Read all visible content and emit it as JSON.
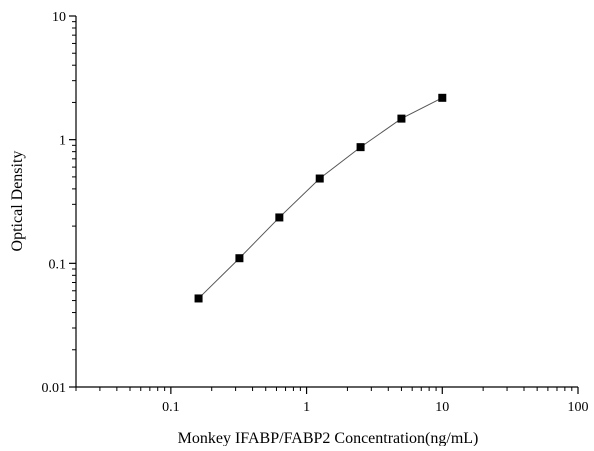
{
  "chart_data": {
    "type": "scatter",
    "title": "",
    "xlabel": "Monkey IFABP/FABP2 Concentration(ng/mL)",
    "ylabel": "Optical Density",
    "x_scale": "log",
    "y_scale": "log",
    "xlim": [
      0.02,
      100
    ],
    "ylim": [
      0.01,
      10
    ],
    "x_ticks": [
      0.1,
      1,
      10,
      100
    ],
    "x_tick_labels": [
      "0.1",
      "1",
      "10",
      "100"
    ],
    "y_ticks": [
      0.01,
      0.1,
      1,
      10
    ],
    "y_tick_labels": [
      "0.01",
      "0.1",
      "1",
      "10"
    ],
    "grid": false,
    "legend": "none",
    "series": [
      {
        "marker": "square",
        "connected": true,
        "x": [
          0.16,
          0.32,
          0.63,
          1.25,
          2.5,
          5,
          10
        ],
        "y": [
          0.052,
          0.11,
          0.235,
          0.485,
          0.87,
          1.48,
          2.18
        ]
      }
    ],
    "colors": {
      "marker": "#000000",
      "line": "#555555",
      "axis": "#000000"
    }
  }
}
